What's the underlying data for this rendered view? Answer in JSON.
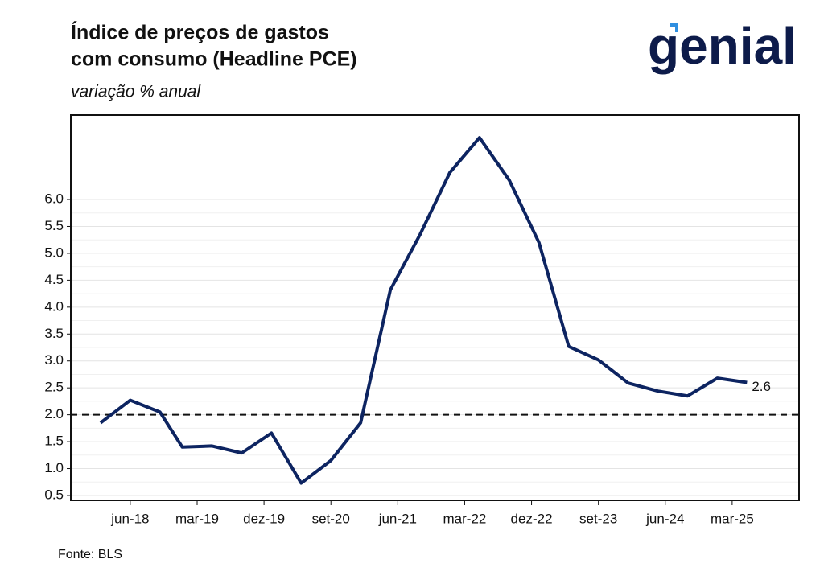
{
  "logo": "genial",
  "chart_data": {
    "type": "line",
    "title": [
      "Índice de preços de gastos",
      "com consumo (Headline PCE)"
    ],
    "subtitle": "variação % anual",
    "source": "Fonte: BLS",
    "x": [
      "2018-02",
      "2018-06",
      "2018-10",
      "2019-01",
      "2019-05",
      "2019-09",
      "2020-01",
      "2020-05",
      "2020-09",
      "2021-01",
      "2021-05",
      "2021-09",
      "2022-01",
      "2022-05",
      "2022-09",
      "2023-01",
      "2023-05",
      "2023-09",
      "2024-01",
      "2024-05",
      "2024-09",
      "2025-01",
      "2025-05"
    ],
    "series": [
      {
        "name": "Headline PCE",
        "color": "#0d2461",
        "values": [
          1.85,
          2.27,
          2.05,
          1.4,
          1.42,
          1.29,
          1.66,
          0.73,
          1.15,
          1.85,
          4.32,
          5.35,
          6.5,
          7.15,
          6.36,
          5.2,
          3.27,
          3.02,
          2.59,
          2.44,
          2.35,
          2.68,
          2.6
        ]
      }
    ],
    "last_value_label": true,
    "reference_line": 2.0,
    "xlim": [
      "2017-10",
      "2025-12"
    ],
    "xticks": [
      {
        "value": "2018-06",
        "label": "jun-18"
      },
      {
        "value": "2019-03",
        "label": "mar-19"
      },
      {
        "value": "2019-12",
        "label": "dez-19"
      },
      {
        "value": "2020-09",
        "label": "set-20"
      },
      {
        "value": "2021-06",
        "label": "jun-21"
      },
      {
        "value": "2022-03",
        "label": "mar-22"
      },
      {
        "value": "2022-12",
        "label": "dez-22"
      },
      {
        "value": "2023-09",
        "label": "set-23"
      },
      {
        "value": "2024-06",
        "label": "jun-24"
      },
      {
        "value": "2025-03",
        "label": "mar-25"
      }
    ],
    "ylim": [
      0.41,
      7.57
    ],
    "yticks": [
      {
        "value": 0.5,
        "label": "0.5"
      },
      {
        "value": 1,
        "label": "1.0"
      },
      {
        "value": 1.5,
        "label": "1.5"
      },
      {
        "value": 2,
        "label": "2.0"
      },
      {
        "value": 2.5,
        "label": "2.5"
      },
      {
        "value": 3,
        "label": "3.0"
      },
      {
        "value": 3.5,
        "label": "3.5"
      },
      {
        "value": 4,
        "label": "4.0"
      },
      {
        "value": 4.5,
        "label": "4.5"
      },
      {
        "value": 5,
        "label": "5.0"
      },
      {
        "value": 5.5,
        "label": "5.5"
      },
      {
        "value": 6,
        "label": "6.0"
      }
    ],
    "grid": true
  }
}
